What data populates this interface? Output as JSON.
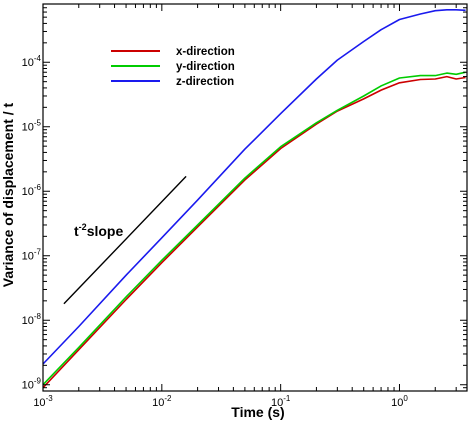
{
  "chart_data": {
    "type": "line",
    "title": "",
    "xlabel": "Time (s)",
    "ylabel": "Variance of displacement / t",
    "xscale": "log",
    "yscale": "log",
    "xlim": [
      0.001,
      3.7
    ],
    "ylim": [
      8e-10,
      0.0008
    ],
    "grid": false,
    "legend": "top-left",
    "x_ticks": [
      {
        "value": 0.001,
        "base": "10",
        "exp": "-3"
      },
      {
        "value": 0.01,
        "base": "10",
        "exp": "-2"
      },
      {
        "value": 0.1,
        "base": "10",
        "exp": "-1"
      },
      {
        "value": 1,
        "base": "10",
        "exp": "0"
      }
    ],
    "y_ticks": [
      {
        "value": 1e-09,
        "base": "10",
        "exp": "-9"
      },
      {
        "value": 1e-08,
        "base": "10",
        "exp": "-8"
      },
      {
        "value": 1e-07,
        "base": "10",
        "exp": "-7"
      },
      {
        "value": 1e-06,
        "base": "10",
        "exp": "-6"
      },
      {
        "value": 1e-05,
        "base": "10",
        "exp": "-5"
      },
      {
        "value": 0.0001,
        "base": "10",
        "exp": "-4"
      }
    ],
    "series": [
      {
        "name": "x-direction",
        "color": "#cc0000",
        "x": [
          0.001,
          0.002,
          0.005,
          0.01,
          0.02,
          0.05,
          0.1,
          0.2,
          0.3,
          0.5,
          0.7,
          1.0,
          1.5,
          2.0,
          2.5,
          3.0,
          3.6
        ],
        "y": [
          9e-10,
          3.5e-09,
          2.1e-08,
          7.8e-08,
          2.8e-07,
          1.5e-06,
          4.6e-06,
          1.1e-05,
          1.75e-05,
          2.7e-05,
          3.7e-05,
          4.8e-05,
          5.4e-05,
          5.5e-05,
          6e-05,
          5.5e-05,
          5.8e-05
        ]
      },
      {
        "name": "y-direction",
        "color": "#00cc00",
        "x": [
          0.001,
          0.002,
          0.005,
          0.01,
          0.02,
          0.05,
          0.1,
          0.2,
          0.3,
          0.5,
          0.7,
          1.0,
          1.5,
          2.0,
          2.5,
          3.0,
          3.6
        ],
        "y": [
          1e-09,
          3.8e-09,
          2.3e-08,
          8.5e-08,
          3e-07,
          1.6e-06,
          4.9e-06,
          1.15e-05,
          1.8e-05,
          3e-05,
          4.3e-05,
          5.7e-05,
          6.2e-05,
          6.2e-05,
          6.8e-05,
          6.5e-05,
          7e-05
        ]
      },
      {
        "name": "z-direction",
        "color": "#1a1aee",
        "x": [
          0.001,
          0.002,
          0.005,
          0.01,
          0.02,
          0.05,
          0.1,
          0.2,
          0.3,
          0.5,
          0.7,
          1.0,
          1.5,
          2.0,
          2.5,
          3.0,
          3.6
        ],
        "y": [
          2.1e-09,
          8e-09,
          5e-08,
          1.9e-07,
          7.3e-07,
          4.5e-06,
          1.6e-05,
          5.5e-05,
          0.000108,
          0.00021,
          0.00032,
          0.00046,
          0.00056,
          0.00063,
          0.00065,
          0.00065,
          0.00064
        ]
      }
    ],
    "annotations": [
      {
        "text_base": "t",
        "text_exp": "-2",
        "text_rest": "slope"
      }
    ],
    "reference_line": {
      "x": [
        0.0015,
        0.016
      ],
      "y": [
        1.8e-08,
        1.7e-06
      ],
      "color": "#000000"
    }
  }
}
